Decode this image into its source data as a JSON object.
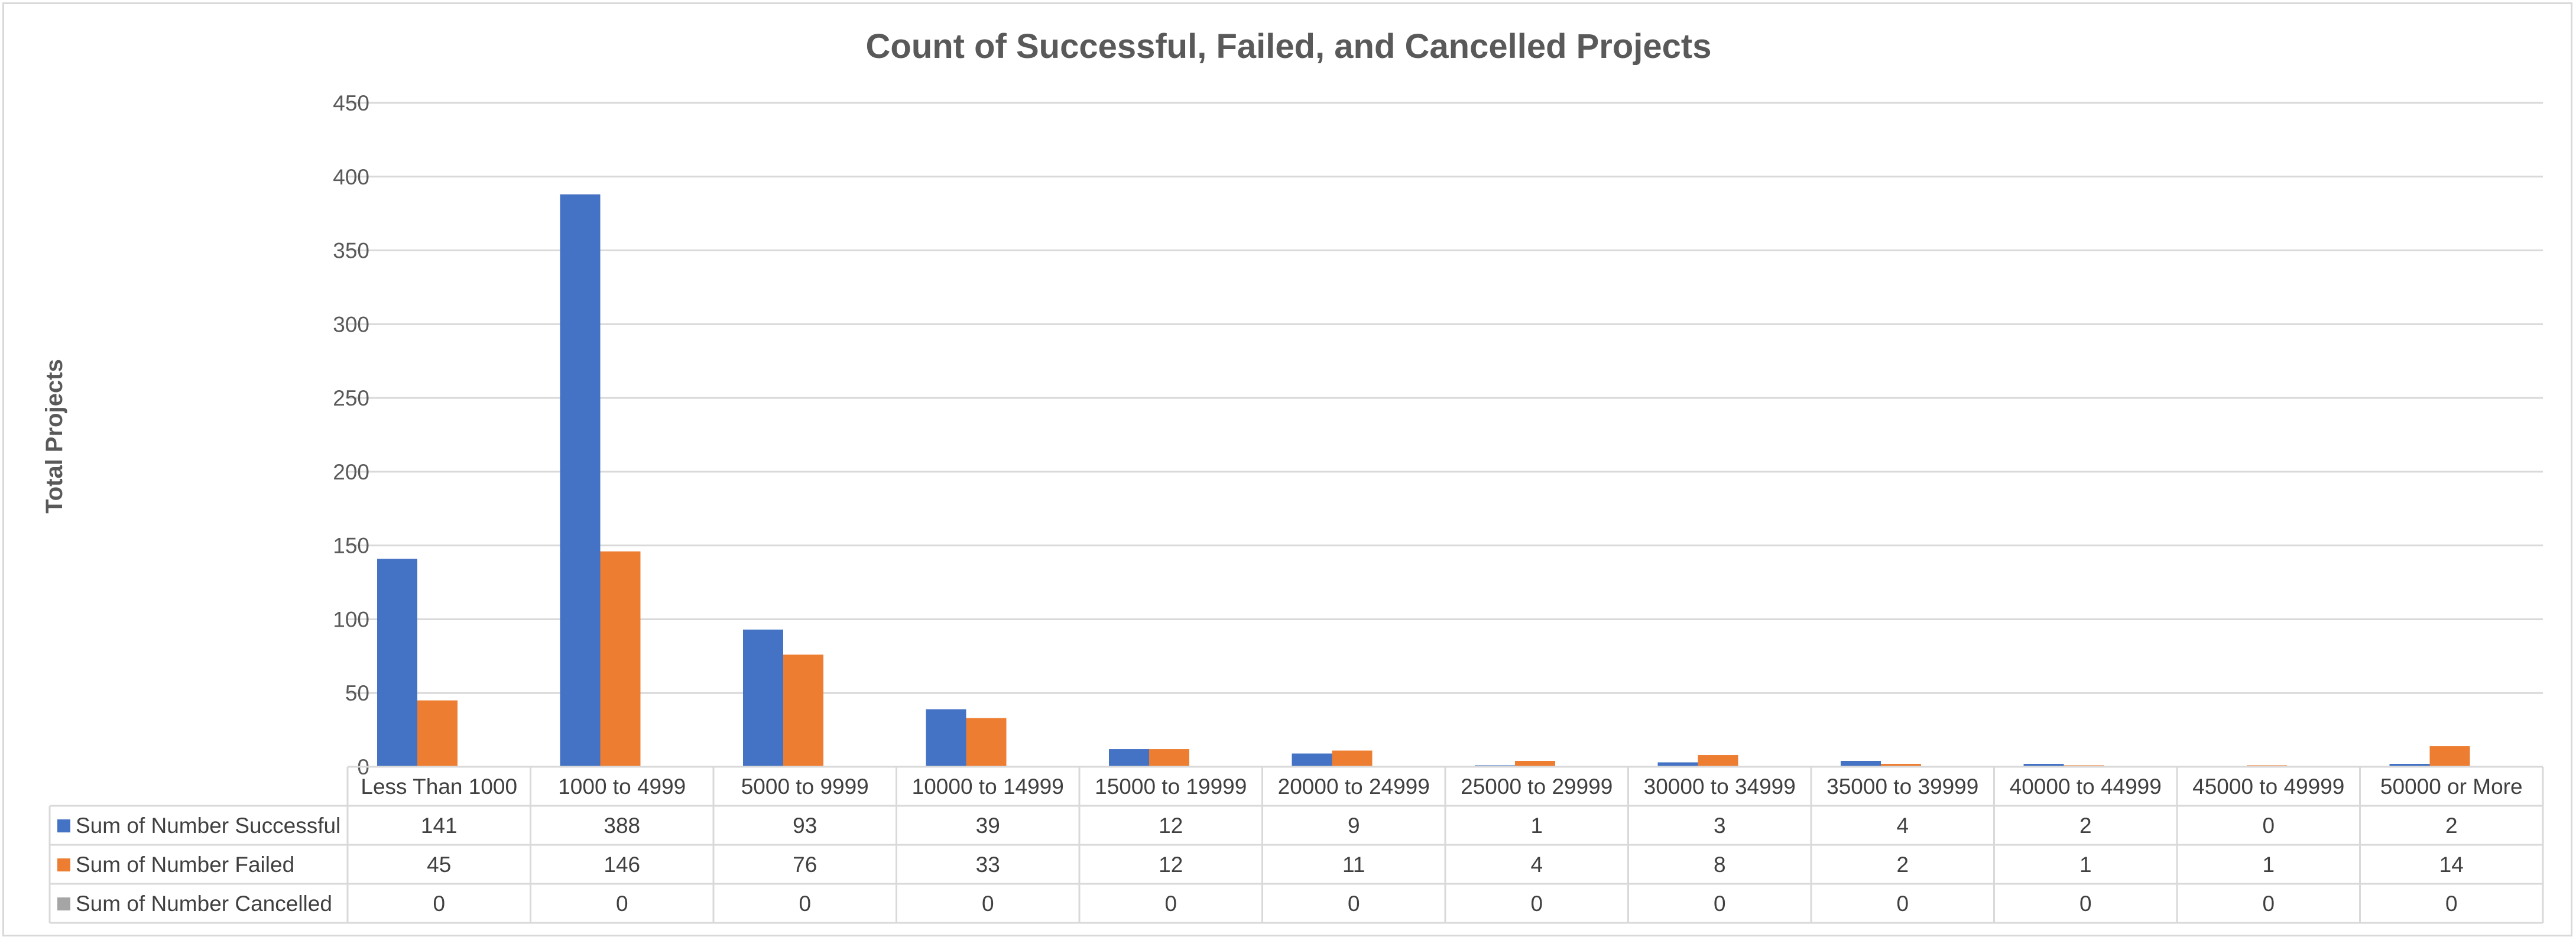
{
  "chart_data": {
    "type": "bar",
    "title": "Count of Successful, Failed, and Cancelled Projects",
    "ylabel": "Total Projects",
    "ylim": [
      0,
      450
    ],
    "yticks": [
      0,
      50,
      100,
      150,
      200,
      250,
      300,
      350,
      400,
      450
    ],
    "grid": true,
    "legend": "data-table",
    "categories": [
      "Less Than 1000",
      "1000 to 4999",
      "5000 to 9999",
      "10000 to 14999",
      "15000 to 19999",
      "20000 to 24999",
      "25000 to 29999",
      "30000 to 34999",
      "35000 to 39999",
      "40000 to 44999",
      "45000 to 49999",
      "50000 or More"
    ],
    "series": [
      {
        "name": "Sum of Number Successful",
        "color": "#4472c4",
        "values": [
          141,
          388,
          93,
          39,
          12,
          9,
          1,
          3,
          4,
          2,
          0,
          2
        ]
      },
      {
        "name": "Sum of Number Failed",
        "color": "#ed7d31",
        "values": [
          45,
          146,
          76,
          33,
          12,
          11,
          4,
          8,
          2,
          1,
          1,
          14
        ]
      },
      {
        "name": "Sum of Number Cancelled",
        "color": "#a5a5a5",
        "values": [
          0,
          0,
          0,
          0,
          0,
          0,
          0,
          0,
          0,
          0,
          0,
          0
        ]
      }
    ]
  }
}
